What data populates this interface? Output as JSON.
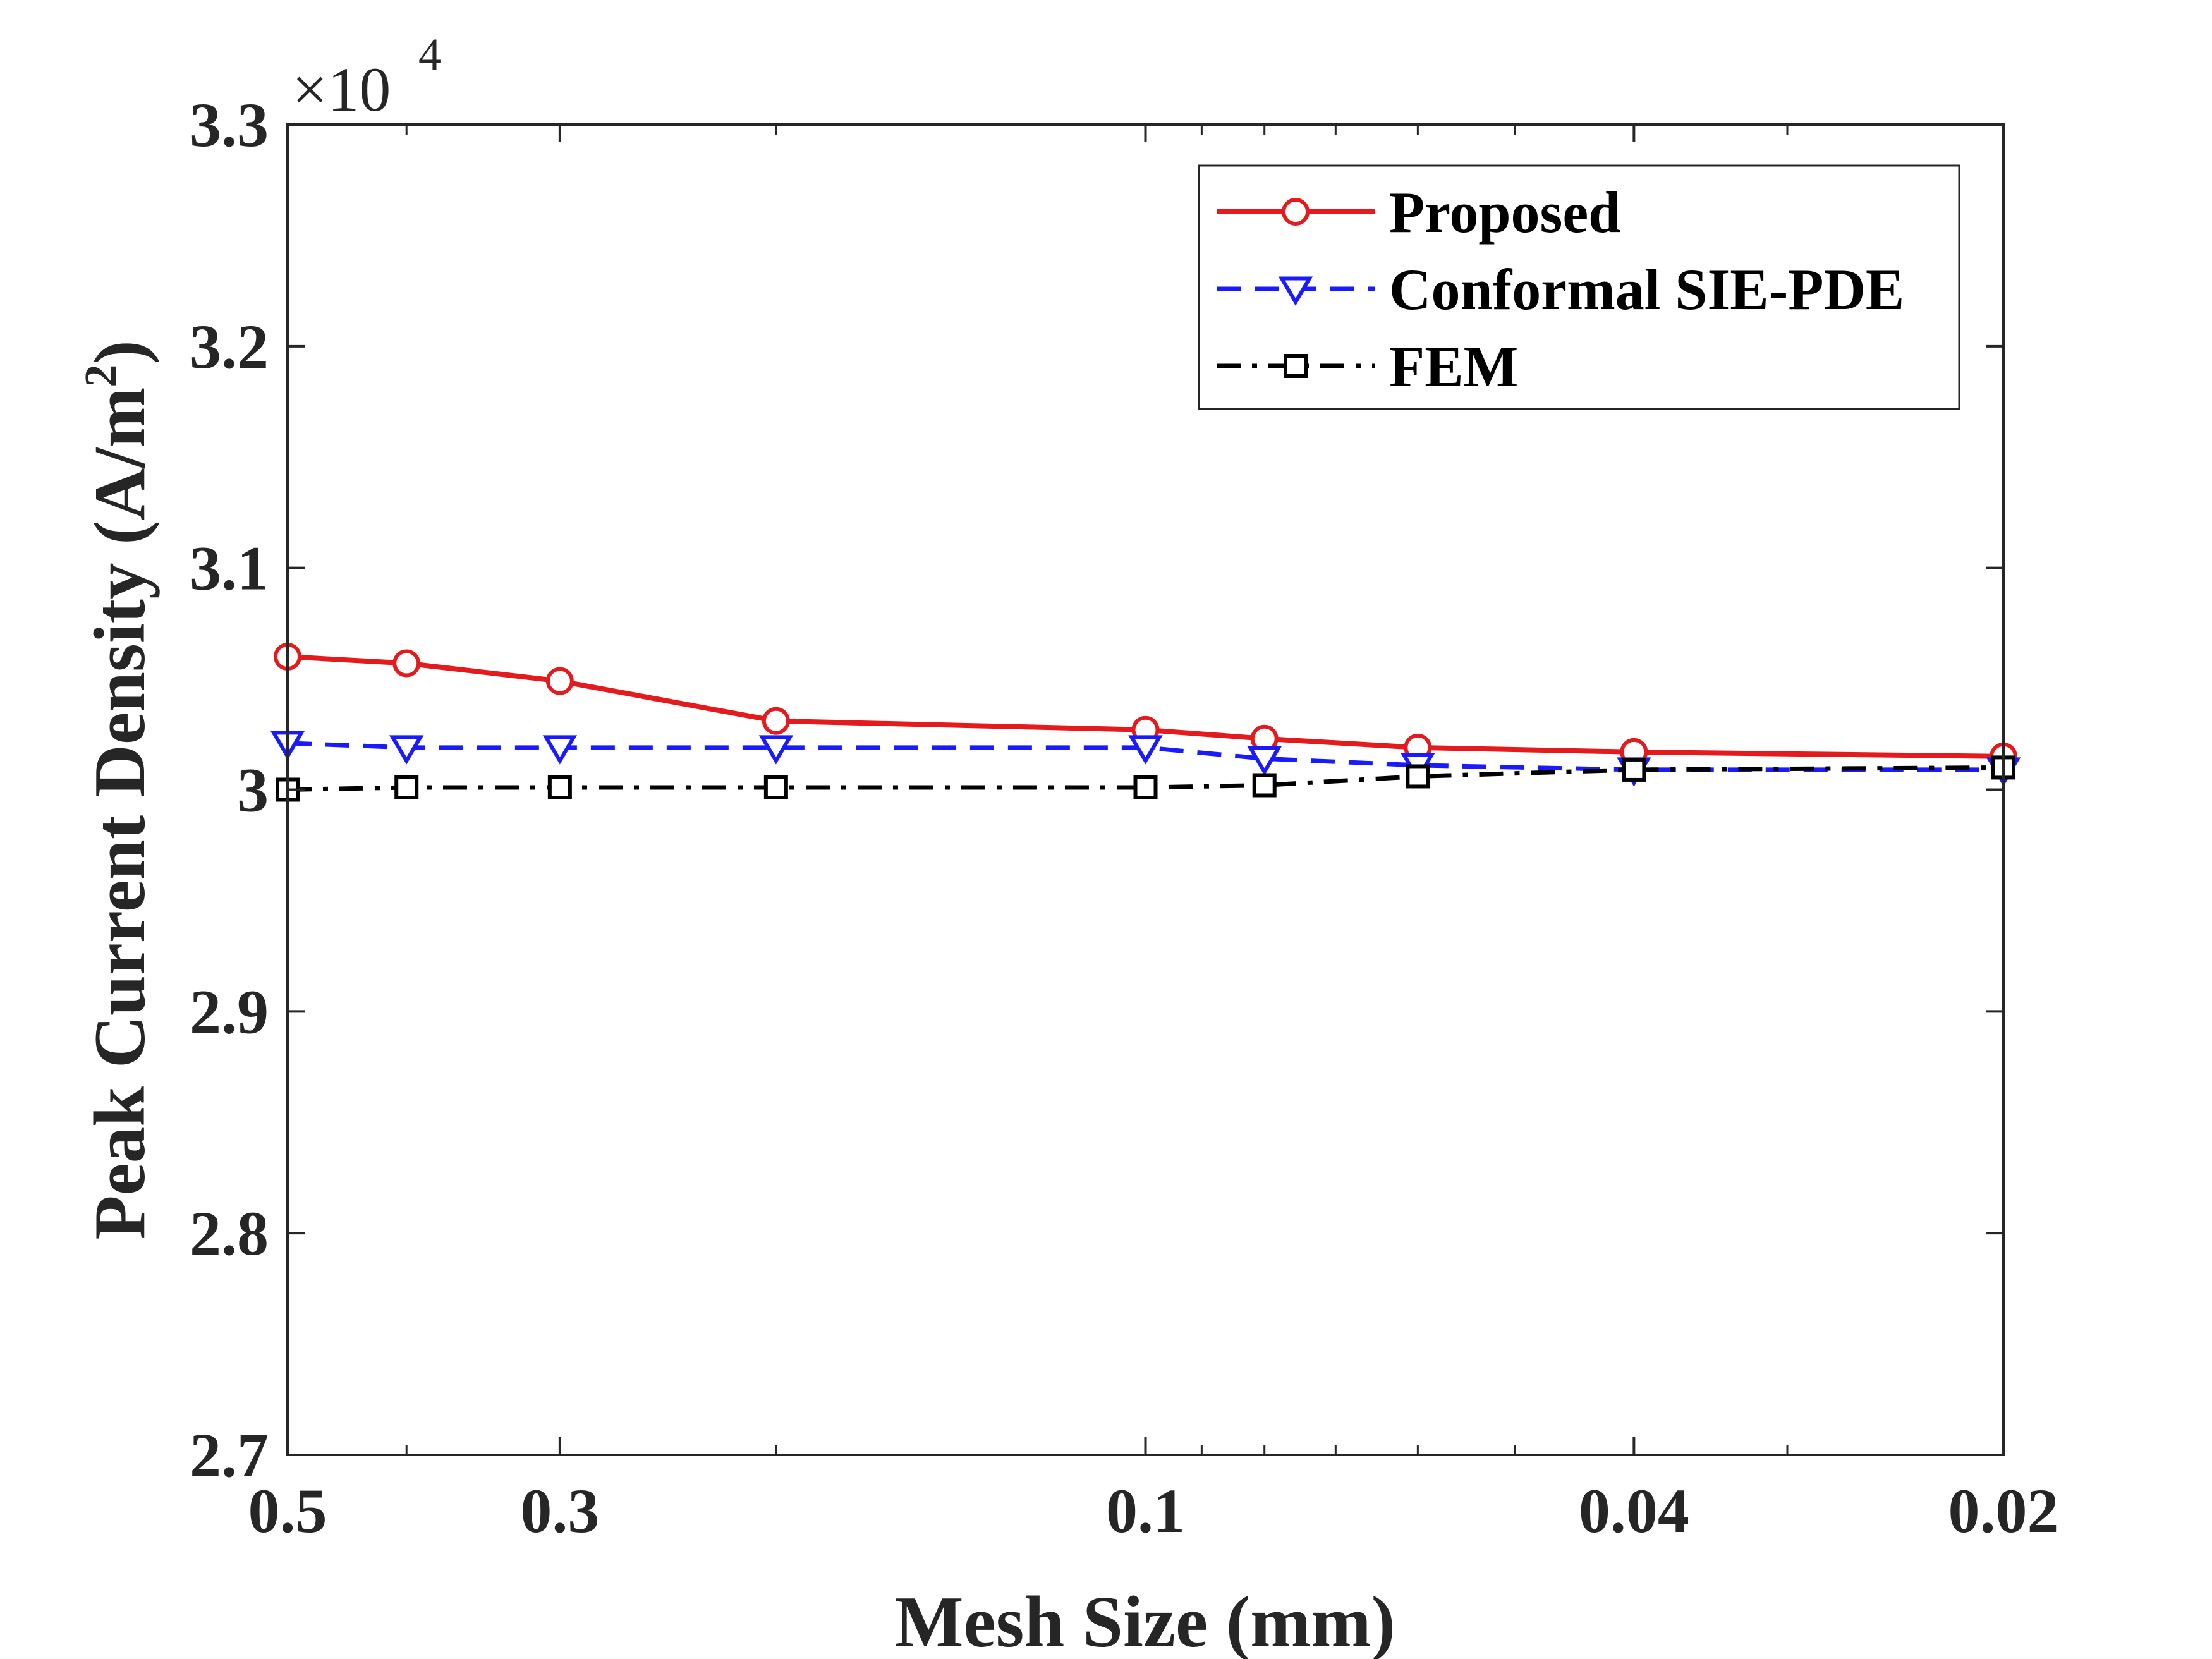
{
  "chart_data": {
    "type": "line",
    "title": "",
    "xlabel": "Mesh Size (mm)",
    "ylabel": "Peak Current Density (A/m",
    "ylabel_superscript": "2",
    "ylabel_suffix": ")",
    "x_scale": "log",
    "x_reversed": true,
    "xlim": [
      0.02,
      0.5
    ],
    "ylim": [
      2.7,
      3.3
    ],
    "y_multiplier": "×10",
    "y_multiplier_exponent": "4",
    "x_ticks": [
      0.5,
      0.3,
      0.1,
      0.04,
      0.02
    ],
    "x_tick_labels": [
      "0.5",
      "0.3",
      "0.1",
      "0.04",
      "0.02"
    ],
    "x_minor_ticks": [
      0.4,
      0.2,
      0.09,
      0.08,
      0.07,
      0.06,
      0.05,
      0.03
    ],
    "y_ticks": [
      2.7,
      2.8,
      2.9,
      3.0,
      3.1,
      3.2,
      3.3
    ],
    "y_tick_labels": [
      "2.7",
      "2.8",
      "2.9",
      "3",
      "3.1",
      "3.2",
      "3.3"
    ],
    "grid": false,
    "legend_position": "top-right",
    "x": [
      0.5,
      0.4,
      0.3,
      0.2,
      0.1,
      0.08,
      0.06,
      0.04,
      0.02
    ],
    "series": [
      {
        "name": "Proposed",
        "color": "#e41a1c",
        "marker": "circle",
        "line_style": "solid",
        "values": [
          3.06,
          3.057,
          3.049,
          3.031,
          3.027,
          3.023,
          3.019,
          3.017,
          3.015
        ]
      },
      {
        "name": "Conformal SIE-PDE",
        "color": "#1a1aff",
        "marker": "triangle-down",
        "line_style": "dashed",
        "values": [
          3.021,
          3.019,
          3.019,
          3.019,
          3.019,
          3.014,
          3.011,
          3.009,
          3.009
        ]
      },
      {
        "name": "FEM",
        "color": "#000000",
        "marker": "square",
        "line_style": "dashdot",
        "values": [
          3.0,
          3.001,
          3.001,
          3.001,
          3.001,
          3.002,
          3.006,
          3.009,
          3.01
        ]
      }
    ]
  }
}
